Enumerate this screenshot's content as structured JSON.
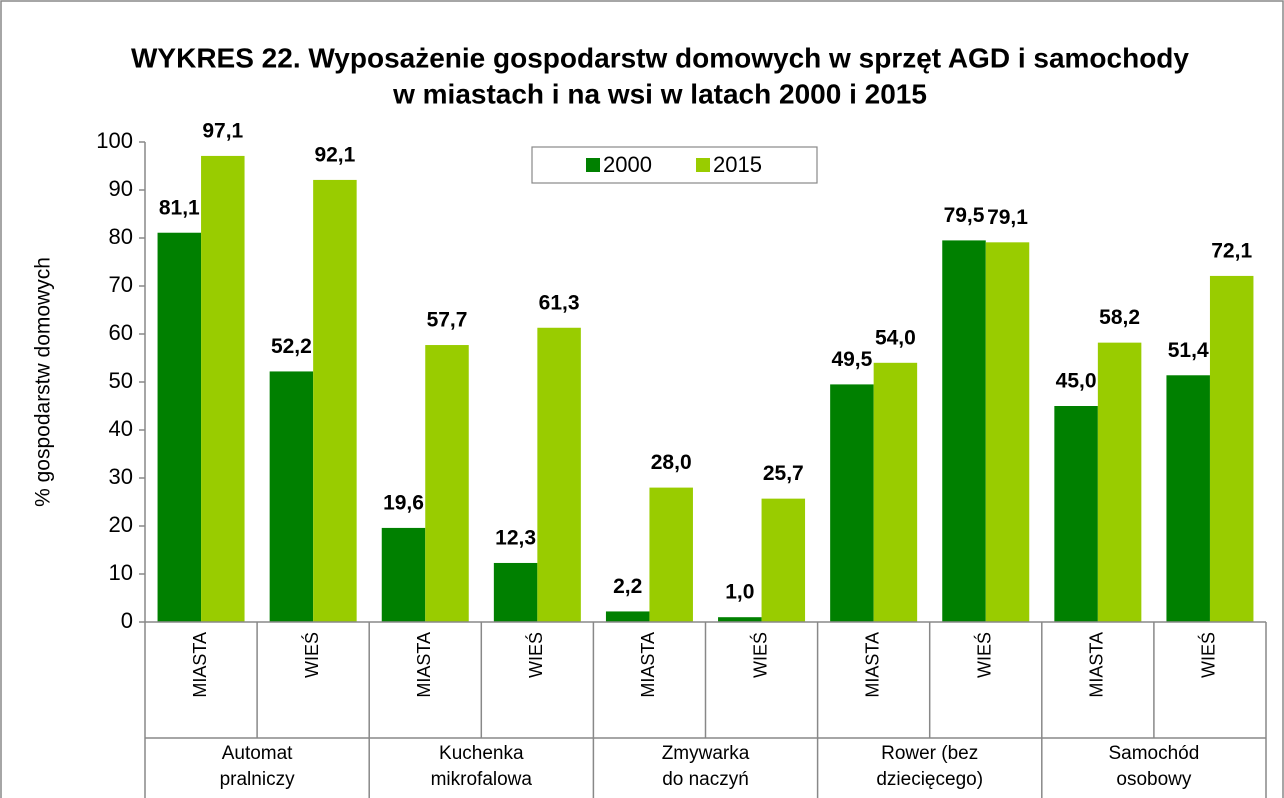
{
  "chart_data": {
    "type": "bar",
    "title": [
      "WYKRES 22. Wyposażenie gospodarstw domowych w sprzęt AGD i samochody",
      "w miastach i na wsi w latach 2000 i 2015"
    ],
    "y_label": "% gospodarstw domowych",
    "categories": [
      "MIASTA",
      "WIEŚ",
      "MIASTA",
      "WIEŚ",
      "MIASTA",
      "WIEŚ",
      "MIASTA",
      "WIEŚ",
      "MIASTA",
      "WIEŚ"
    ],
    "groups": [
      [
        "Automat",
        "pralniczy"
      ],
      [
        "Kuchenka",
        "mikrofalowa"
      ],
      [
        "Zmywarka",
        "do naczyń"
      ],
      [
        "Rower (bez",
        "dziecięcego)"
      ],
      [
        "Samochód",
        "osobowy"
      ]
    ],
    "series": [
      {
        "name": "2000",
        "color": "#008000",
        "values": [
          81.1,
          52.2,
          19.6,
          12.3,
          2.2,
          1.0,
          49.5,
          79.5,
          45.0,
          51.4
        ],
        "value_labels": [
          "81,1",
          "52,2",
          "19,6",
          "12,3",
          "2,2",
          "1,0",
          "49,5",
          "79,5",
          "45,0",
          "51,4"
        ]
      },
      {
        "name": "2015",
        "color": "#99cc00",
        "values": [
          97.1,
          92.1,
          57.7,
          61.3,
          28.0,
          25.7,
          54.0,
          79.1,
          58.2,
          72.1
        ],
        "value_labels": [
          "97,1",
          "92,1",
          "57,7",
          "61,3",
          "28,0",
          "25,7",
          "54,0",
          "79,1",
          "58,2",
          "72,1"
        ]
      }
    ],
    "ylim": [
      0,
      100
    ],
    "yticks": [
      0,
      10,
      20,
      30,
      40,
      50,
      60,
      70,
      80,
      90,
      100
    ],
    "grid": false,
    "legend": "top"
  }
}
